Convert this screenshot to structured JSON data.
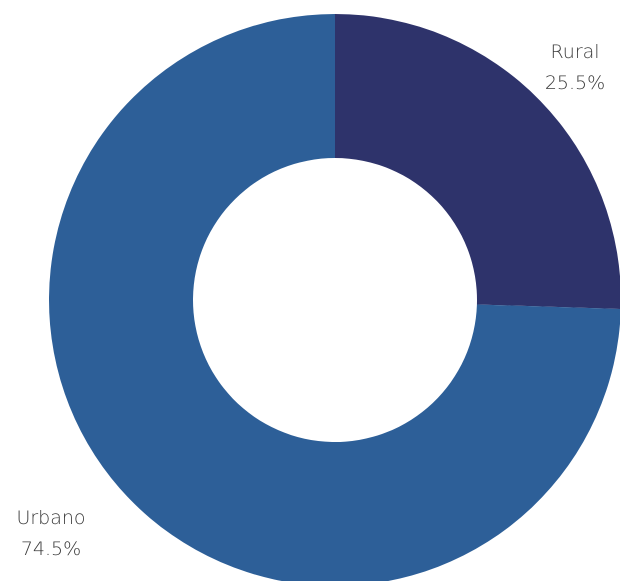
{
  "chart_data": {
    "type": "pie",
    "variant": "donut",
    "title": "",
    "slices": [
      {
        "label": "Rural",
        "value": 25.5,
        "value_label": "25.5%",
        "color": "#2e336b"
      },
      {
        "label": "Urbano",
        "value": 74.5,
        "value_label": "74.5%",
        "color": "#2d5f98"
      }
    ],
    "legend": "none"
  }
}
